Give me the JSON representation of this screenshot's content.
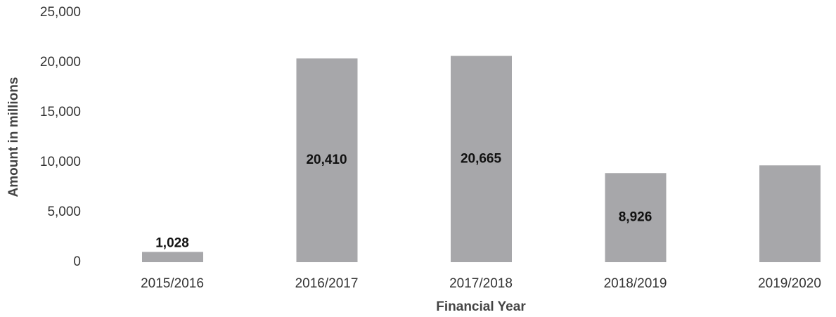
{
  "chart_data": {
    "type": "bar",
    "xlabel": "Financial Year",
    "ylabel": "Amount in millions",
    "categories": [
      "2015/2016",
      "2016/2017",
      "2017/2018",
      "2018/2019",
      "2019/2020"
    ],
    "values": [
      1028,
      20410,
      20665,
      8926,
      9700
    ],
    "value_labels": [
      "1,028",
      "20,410",
      "20,665",
      "8,926",
      null
    ],
    "color": "#a7a7aa",
    "ylim": [
      0,
      25000
    ],
    "yticks": [
      0,
      {
        "value": 5000,
        "label": "5,000"
      },
      {
        "value": 10000,
        "label": "10,000"
      },
      {
        "value": 15000,
        "label": "15,000"
      },
      {
        "value": 20000,
        "label": "20,000"
      },
      {
        "value": 25000,
        "label": "25,000"
      }
    ],
    "grid": false
  }
}
